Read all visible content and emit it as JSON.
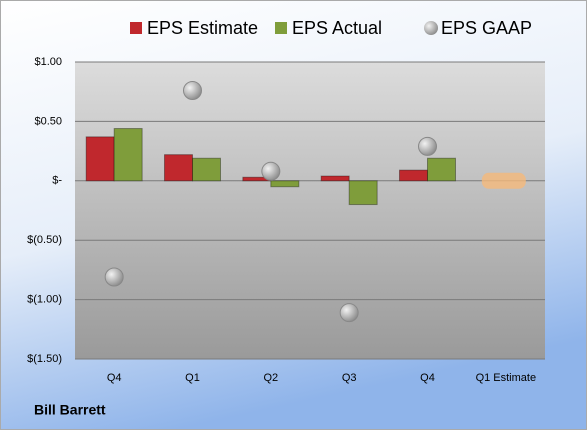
{
  "chart_data": {
    "type": "bar",
    "categories": [
      "Q4",
      "Q1",
      "Q2",
      "Q3",
      "Q4",
      "Q1 Estimate"
    ],
    "series": [
      {
        "name": "EPS Estimate",
        "type": "bar",
        "color": "#c0282d",
        "values": [
          0.37,
          0.22,
          0.03,
          0.04,
          0.09,
          0.0
        ]
      },
      {
        "name": "EPS Actual",
        "type": "bar",
        "color": "#7f9d3b",
        "values": [
          0.44,
          0.19,
          -0.05,
          -0.2,
          0.19,
          null
        ]
      },
      {
        "name": "EPS GAAP",
        "type": "scatter",
        "color": "#a6a6a6",
        "values": [
          -0.81,
          0.76,
          0.08,
          -1.11,
          0.29,
          null
        ]
      }
    ],
    "estimate_color": "#f5b97a",
    "ylim": [
      -1.5,
      1.0
    ],
    "yticks": [
      {
        "value": -1.5,
        "label": "$(1.50)"
      },
      {
        "value": -1.0,
        "label": "$(1.00)"
      },
      {
        "value": -0.5,
        "label": "$(0.50)"
      },
      {
        "value": 0,
        "label": "$-"
      },
      {
        "value": 0.5,
        "label": "$0.50"
      },
      {
        "value": 1.0,
        "label": "$1.00"
      }
    ],
    "grid": true,
    "footer": "Bill Barrett"
  }
}
